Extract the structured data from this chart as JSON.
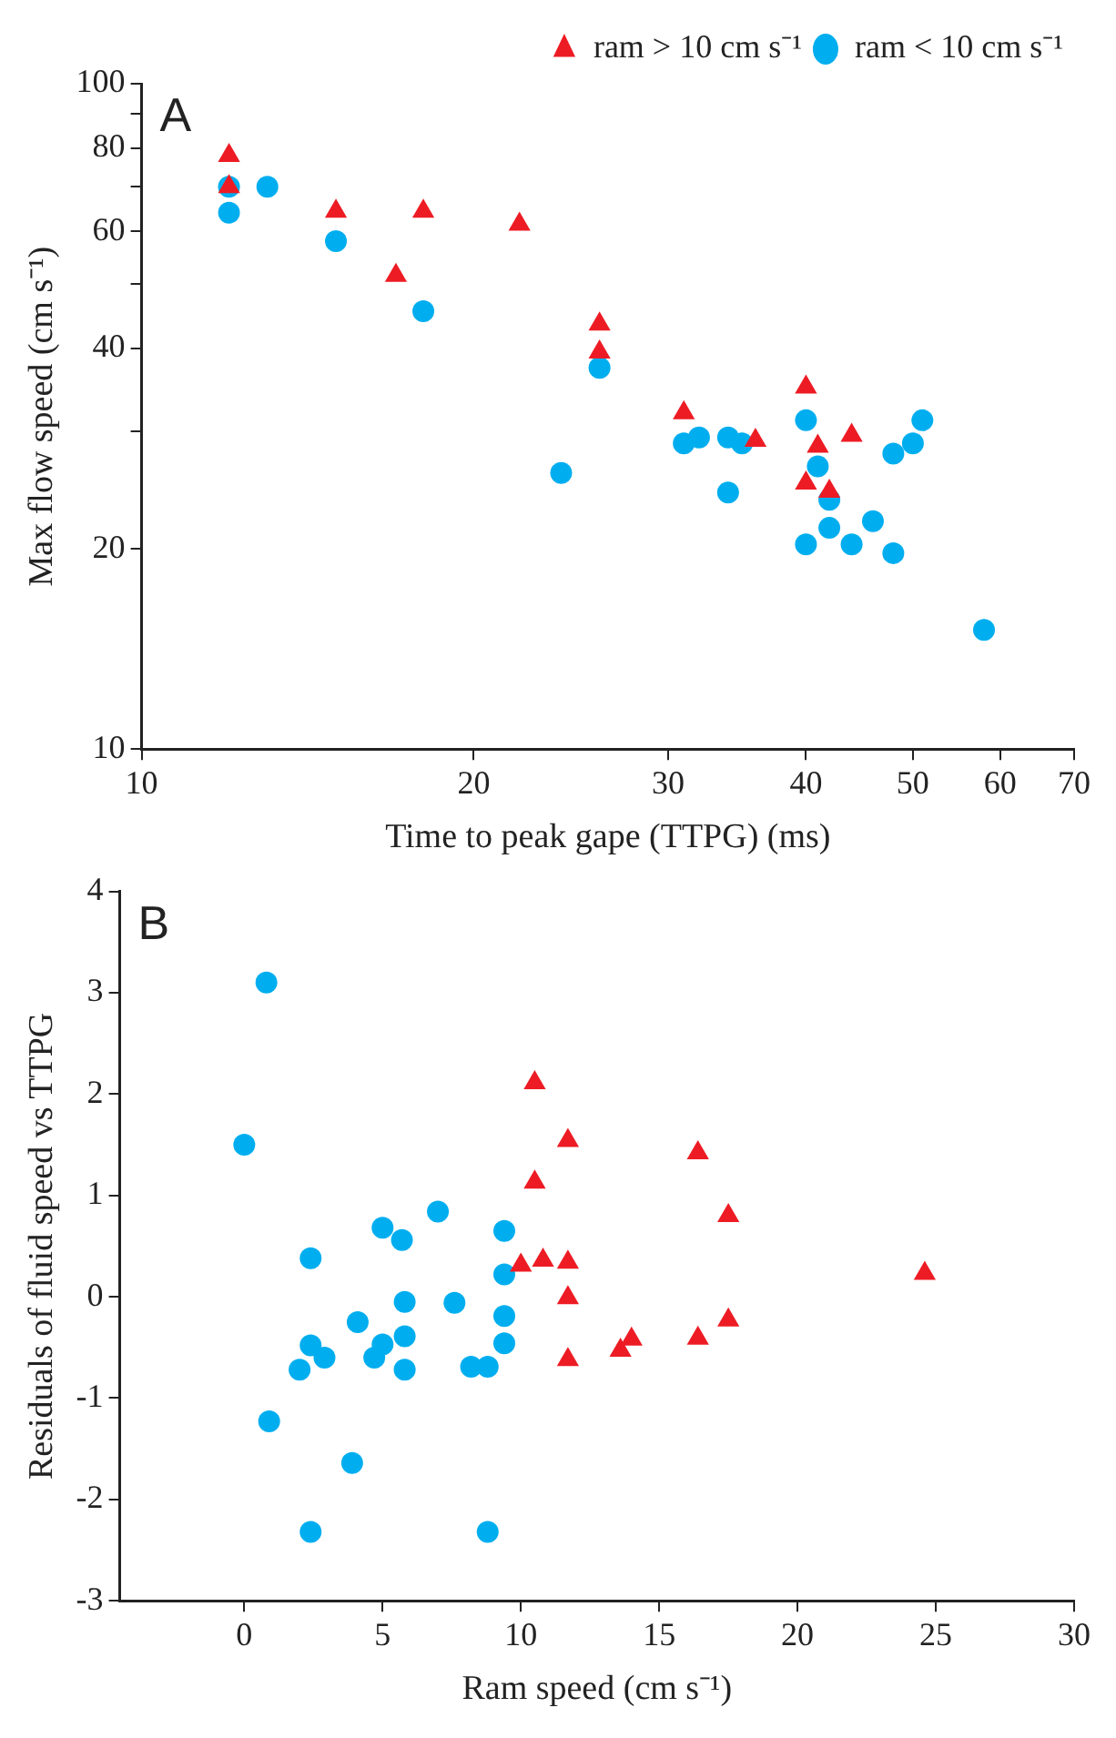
{
  "chart_data": [
    {
      "type": "scatter",
      "xlabel": "Time to peak gape (TTPG) (ms)",
      "ylabel": "Max flow speed (cm s⁻¹)",
      "annotations": [
        "A"
      ],
      "log": "xy",
      "grid": false,
      "legend": "top right",
      "xlim": [
        10,
        70
      ],
      "xticks": [
        10,
        20,
        30,
        40,
        50,
        60,
        70
      ],
      "ylim": [
        10,
        100
      ],
      "yticks": [
        10,
        20,
        {
          "value": 30,
          "label": null
        },
        40,
        {
          "value": 50,
          "label": null
        },
        60,
        {
          "value": 70,
          "label": null
        },
        80,
        {
          "value": 90,
          "label": null
        },
        100
      ],
      "series": [
        {
          "name": "ram < 10 cm s⁻¹",
          "color": "#00aeef",
          "marker": "circle",
          "x": [
            12,
            12,
            13,
            15,
            18,
            26,
            24,
            31,
            32,
            34,
            35,
            34,
            40,
            41,
            42,
            42,
            46,
            40,
            44,
            48,
            48,
            50,
            51,
            58
          ],
          "values": [
            70,
            64,
            70,
            58,
            45.5,
            37.4,
            26,
            28.8,
            29.4,
            29.4,
            28.8,
            24.3,
            31.2,
            26.6,
            23.7,
            21.5,
            22,
            20.3,
            20.3,
            19.7,
            27.8,
            28.8,
            31.2,
            15.1
          ]
        },
        {
          "name": "ram > 10 cm s⁻¹",
          "color": "#ed1c24",
          "marker": "triangle",
          "x": [
            12,
            12,
            15,
            18,
            22,
            17,
            26,
            26,
            40,
            31,
            36,
            41,
            44,
            40,
            42
          ],
          "values": [
            78,
            70,
            64.3,
            64.3,
            61.5,
            51.5,
            43.5,
            39.5,
            35,
            32,
            29.1,
            28.5,
            29.6,
            25.1,
            24.4
          ]
        }
      ]
    },
    {
      "type": "scatter",
      "xlabel": "Ram speed (cm s⁻¹)",
      "ylabel": "Residuals of fluid speed vs TTPG",
      "annotations": [
        "B"
      ],
      "grid": false,
      "xlim": [
        -4.5,
        30
      ],
      "xticks": [
        0,
        5,
        10,
        15,
        20,
        25,
        30
      ],
      "ylim": [
        -3,
        4
      ],
      "yticks": [
        -3,
        -2,
        -1,
        0,
        1,
        2,
        3,
        4
      ],
      "series": [
        {
          "color": "#00aeef",
          "marker": "circle",
          "x": [
            0.8,
            0,
            7,
            5,
            5.7,
            2.4,
            9.4,
            9.4,
            5.8,
            7.6,
            9.4,
            4.1,
            5.8,
            9.4,
            2.4,
            5,
            2.9,
            4.7,
            2,
            5.8,
            8.2,
            8.8,
            0.9,
            3.9,
            2.4,
            8.8
          ],
          "values": [
            3.1,
            1.5,
            0.84,
            0.68,
            0.56,
            0.38,
            0.65,
            0.22,
            -0.05,
            -0.06,
            -0.19,
            -0.25,
            -0.39,
            -0.46,
            -0.48,
            -0.47,
            -0.6,
            -0.6,
            -0.72,
            -0.72,
            -0.69,
            -0.69,
            -1.23,
            -1.64,
            -2.32,
            -2.32
          ]
        },
        {
          "color": "#ed1c24",
          "marker": "triangle",
          "x": [
            10.5,
            11.7,
            16.4,
            10.5,
            17.5,
            10,
            10.8,
            11.7,
            24.6,
            11.7,
            17.5,
            16.4,
            14,
            13.6,
            11.7
          ],
          "values": [
            2.11,
            1.54,
            1.42,
            1.13,
            0.8,
            0.31,
            0.36,
            0.34,
            0.23,
            -0.01,
            -0.23,
            -0.41,
            -0.42,
            -0.53,
            -0.62
          ]
        }
      ]
    }
  ]
}
